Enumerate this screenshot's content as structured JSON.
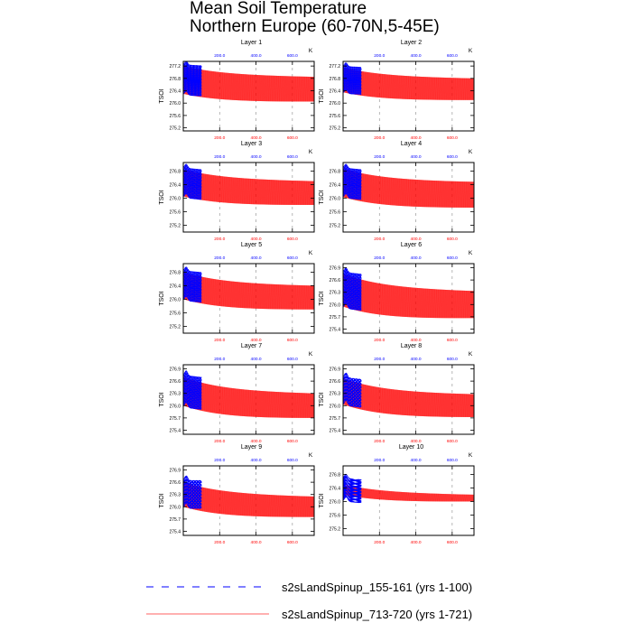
{
  "title": {
    "line1": "Mean Soil Temperature",
    "line2": "Northern Europe (60-70N,5-45E)"
  },
  "legend": [
    {
      "label": "s2sLandSpinup_155-161 (yrs 1-100)",
      "color": "#0000ff",
      "style": "dashed"
    },
    {
      "label": "s2sLandSpinup_713-720 (yrs 1-721)",
      "color": "#ff0000",
      "style": "solid"
    }
  ],
  "chart_data": [
    {
      "type": "line",
      "title": "Layer 1",
      "ylabel": "TSOI",
      "top_axis_label": "K",
      "yticks": [
        "277.2",
        "276.8",
        "276.4",
        "276.0",
        "275.6",
        "275.2"
      ],
      "ylim": [
        275.1,
        277.35
      ],
      "xlim_bottom": [
        0,
        720
      ],
      "xticks_bottom": [
        "200.0",
        "400.0",
        "600.0"
      ],
      "xlim_top": [
        0,
        720
      ],
      "xticks_top": [
        "200.0",
        "400.0",
        "600.0"
      ],
      "series": [
        {
          "name": "s2sLandSpinup_155-161 (yrs 1-100)",
          "x_range": [
            1,
            100
          ],
          "mean_start": 276.75,
          "mean_end": 276.72,
          "amplitude_start": 0.5,
          "amplitude_end": 0.5
        },
        {
          "name": "s2sLandSpinup_713-720 (yrs 1-721)",
          "x_range": [
            1,
            721
          ],
          "mean_start": 276.75,
          "mean_end": 276.45,
          "amplitude_start": 0.45,
          "amplitude_end": 0.4
        }
      ]
    },
    {
      "type": "line",
      "title": "Layer 2",
      "ylabel": "TSOI",
      "top_axis_label": "K",
      "yticks": [
        "277.2",
        "276.8",
        "276.4",
        "276.0",
        "275.6",
        "275.2"
      ],
      "ylim": [
        275.1,
        277.35
      ],
      "xlim_bottom": [
        0,
        720
      ],
      "xticks_bottom": [
        "200.0",
        "400.0",
        "600.0"
      ],
      "xlim_top": [
        0,
        720
      ],
      "xticks_top": [
        "200.0",
        "400.0",
        "600.0"
      ],
      "series": [
        {
          "name": "s2sLandSpinup_155-161 (yrs 1-100)",
          "x_range": [
            1,
            100
          ],
          "mean_start": 276.75,
          "mean_end": 276.72,
          "amplitude_start": 0.45,
          "amplitude_end": 0.45
        },
        {
          "name": "s2sLandSpinup_713-720 (yrs 1-721)",
          "x_range": [
            1,
            721
          ],
          "mean_start": 276.75,
          "mean_end": 276.45,
          "amplitude_start": 0.4,
          "amplitude_end": 0.35
        }
      ]
    },
    {
      "type": "line",
      "title": "Layer 3",
      "ylabel": "TSOI",
      "top_axis_label": "K",
      "yticks": [
        "276.8",
        "276.4",
        "276.0",
        "275.6",
        "275.2"
      ],
      "ylim": [
        275.0,
        277.05
      ],
      "xlim_bottom": [
        0,
        720
      ],
      "xticks_bottom": [
        "200.0",
        "400.0",
        "600.0"
      ],
      "xlim_top": [
        0,
        720
      ],
      "xticks_top": [
        "200.0",
        "400.0",
        "600.0"
      ],
      "series": [
        {
          "name": "s2sLandSpinup_155-161 (yrs 1-100)",
          "x_range": [
            1,
            100
          ],
          "mean_start": 276.45,
          "mean_end": 276.4,
          "amplitude_start": 0.45,
          "amplitude_end": 0.45
        },
        {
          "name": "s2sLandSpinup_713-720 (yrs 1-721)",
          "x_range": [
            1,
            721
          ],
          "mean_start": 276.45,
          "mean_end": 276.15,
          "amplitude_start": 0.4,
          "amplitude_end": 0.35
        }
      ]
    },
    {
      "type": "line",
      "title": "Layer 4",
      "ylabel": "TSOI",
      "top_axis_label": "K",
      "yticks": [
        "276.8",
        "276.4",
        "276.0",
        "275.6",
        "275.2"
      ],
      "ylim": [
        275.0,
        277.05
      ],
      "xlim_bottom": [
        0,
        720
      ],
      "xticks_bottom": [
        "200.0",
        "400.0",
        "600.0"
      ],
      "xlim_top": [
        0,
        720
      ],
      "xticks_top": [
        "200.0",
        "400.0",
        "600.0"
      ],
      "series": [
        {
          "name": "s2sLandSpinup_155-161 (yrs 1-100)",
          "x_range": [
            1,
            100
          ],
          "mean_start": 276.45,
          "mean_end": 276.4,
          "amplitude_start": 0.45,
          "amplitude_end": 0.45
        },
        {
          "name": "s2sLandSpinup_713-720 (yrs 1-721)",
          "x_range": [
            1,
            721
          ],
          "mean_start": 276.45,
          "mean_end": 276.1,
          "amplitude_start": 0.42,
          "amplitude_end": 0.38
        }
      ]
    },
    {
      "type": "line",
      "title": "Layer 5",
      "ylabel": "TSOI",
      "top_axis_label": "K",
      "yticks": [
        "276.8",
        "276.4",
        "276.0",
        "275.6",
        "275.2"
      ],
      "ylim": [
        275.0,
        277.05
      ],
      "xlim_bottom": [
        0,
        720
      ],
      "xticks_bottom": [
        "200.0",
        "400.0",
        "600.0"
      ],
      "xlim_top": [
        0,
        720
      ],
      "xticks_top": [
        "200.0",
        "400.0",
        "600.0"
      ],
      "series": [
        {
          "name": "s2sLandSpinup_155-161 (yrs 1-100)",
          "x_range": [
            1,
            100
          ],
          "mean_start": 276.4,
          "mean_end": 276.35,
          "amplitude_start": 0.45,
          "amplitude_end": 0.45
        },
        {
          "name": "s2sLandSpinup_713-720 (yrs 1-721)",
          "x_range": [
            1,
            721
          ],
          "mean_start": 276.4,
          "mean_end": 276.05,
          "amplitude_start": 0.4,
          "amplitude_end": 0.35
        }
      ]
    },
    {
      "type": "line",
      "title": "Layer 6",
      "ylabel": "TSOI",
      "top_axis_label": "K",
      "yticks": [
        "276.9",
        "276.6",
        "276.3",
        "276.0",
        "275.7",
        "275.4"
      ],
      "ylim": [
        275.3,
        277.0
      ],
      "xlim_bottom": [
        0,
        720
      ],
      "xticks_bottom": [
        "200.0",
        "400.0",
        "600.0"
      ],
      "xlim_top": [
        0,
        720
      ],
      "xticks_top": [
        "200.0",
        "400.0",
        "600.0"
      ],
      "series": [
        {
          "name": "s2sLandSpinup_155-161 (yrs 1-100)",
          "x_range": [
            1,
            100
          ],
          "mean_start": 276.35,
          "mean_end": 276.3,
          "amplitude_start": 0.45,
          "amplitude_end": 0.45
        },
        {
          "name": "s2sLandSpinup_713-720 (yrs 1-721)",
          "x_range": [
            1,
            721
          ],
          "mean_start": 276.35,
          "mean_end": 276.0,
          "amplitude_start": 0.4,
          "amplitude_end": 0.33
        }
      ]
    },
    {
      "type": "line",
      "title": "Layer 7",
      "ylabel": "TSOI",
      "top_axis_label": "K",
      "yticks": [
        "276.9",
        "276.6",
        "276.3",
        "276.0",
        "275.7",
        "275.4"
      ],
      "ylim": [
        275.3,
        277.0
      ],
      "xlim_bottom": [
        0,
        720
      ],
      "xticks_bottom": [
        "200.0",
        "400.0",
        "600.0"
      ],
      "xlim_top": [
        0,
        720
      ],
      "xticks_top": [
        "200.0",
        "400.0",
        "600.0"
      ],
      "series": [
        {
          "name": "s2sLandSpinup_155-161 (yrs 1-100)",
          "x_range": [
            1,
            100
          ],
          "mean_start": 276.35,
          "mean_end": 276.3,
          "amplitude_start": 0.4,
          "amplitude_end": 0.4
        },
        {
          "name": "s2sLandSpinup_713-720 (yrs 1-721)",
          "x_range": [
            1,
            721
          ],
          "mean_start": 276.35,
          "mean_end": 276.0,
          "amplitude_start": 0.35,
          "amplitude_end": 0.3
        }
      ]
    },
    {
      "type": "line",
      "title": "Layer 8",
      "ylabel": "TSOI",
      "top_axis_label": "K",
      "yticks": [
        "276.9",
        "276.6",
        "276.3",
        "276.0",
        "275.7",
        "275.4"
      ],
      "ylim": [
        275.3,
        277.0
      ],
      "xlim_bottom": [
        0,
        720
      ],
      "xticks_bottom": [
        "200.0",
        "400.0",
        "600.0"
      ],
      "xlim_top": [
        0,
        720
      ],
      "xticks_top": [
        "200.0",
        "400.0",
        "600.0"
      ],
      "series": [
        {
          "name": "s2sLandSpinup_155-161 (yrs 1-100)",
          "x_range": [
            1,
            100
          ],
          "mean_start": 276.35,
          "mean_end": 276.3,
          "amplitude_start": 0.35,
          "amplitude_end": 0.35
        },
        {
          "name": "s2sLandSpinup_713-720 (yrs 1-721)",
          "x_range": [
            1,
            721
          ],
          "mean_start": 276.35,
          "mean_end": 276.0,
          "amplitude_start": 0.32,
          "amplitude_end": 0.28
        }
      ]
    },
    {
      "type": "line",
      "title": "Layer 9",
      "ylabel": "TSOI",
      "top_axis_label": "K",
      "yticks": [
        "276.9",
        "276.6",
        "276.3",
        "276.0",
        "275.7",
        "275.4"
      ],
      "ylim": [
        275.3,
        277.0
      ],
      "xlim_bottom": [
        0,
        720
      ],
      "xticks_bottom": [
        "200.0",
        "400.0",
        "600.0"
      ],
      "xlim_top": [
        0,
        720
      ],
      "xticks_top": [
        "200.0",
        "400.0",
        "600.0"
      ],
      "series": [
        {
          "name": "s2sLandSpinup_155-161 (yrs 1-100)",
          "x_range": [
            1,
            100
          ],
          "mean_start": 276.3,
          "mean_end": 276.3,
          "amplitude_start": 0.35,
          "amplitude_end": 0.35
        },
        {
          "name": "s2sLandSpinup_713-720 (yrs 1-721)",
          "x_range": [
            1,
            721
          ],
          "mean_start": 276.3,
          "mean_end": 276.0,
          "amplitude_start": 0.3,
          "amplitude_end": 0.25
        }
      ]
    },
    {
      "type": "line",
      "title": "Layer 10",
      "ylabel": "TSOI",
      "top_axis_label": "K",
      "yticks": [
        "276.8",
        "276.4",
        "276.0",
        "275.6",
        "275.2"
      ],
      "ylim": [
        275.0,
        277.05
      ],
      "xlim_bottom": [
        0,
        720
      ],
      "xticks_bottom": [
        "200.0",
        "400.0",
        "600.0"
      ],
      "xlim_top": [
        0,
        720
      ],
      "xticks_top": [
        "200.0",
        "400.0",
        "600.0"
      ],
      "series": [
        {
          "name": "s2sLandSpinup_155-161 (yrs 1-100)",
          "x_range": [
            1,
            100
          ],
          "mean_start": 276.35,
          "mean_end": 276.3,
          "amplitude_start": 0.35,
          "amplitude_end": 0.35
        },
        {
          "name": "s2sLandSpinup_713-720 (yrs 1-721)",
          "x_range": [
            1,
            721
          ],
          "mean_start": 276.35,
          "mean_end": 276.1,
          "amplitude_start": 0.15,
          "amplitude_end": 0.1
        }
      ]
    }
  ]
}
